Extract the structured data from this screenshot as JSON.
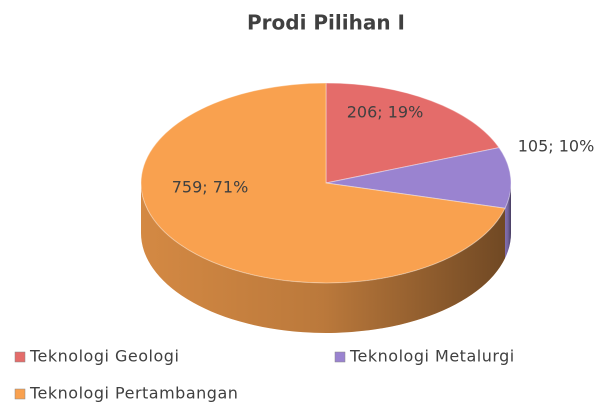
{
  "chart_data": {
    "type": "pie",
    "title": "Prodi Pilihan I",
    "categories": [
      "Teknologi Geologi",
      "Teknologi Metalurgi",
      "Teknologi Pertambangan"
    ],
    "values": [
      206,
      105,
      759
    ],
    "value_labels": [
      "206; 19%",
      "105; 10%",
      "759; 71%"
    ],
    "colors": [
      "#e46c6a",
      "#9a83d0",
      "#f9a14f"
    ],
    "legend": "bottom"
  }
}
